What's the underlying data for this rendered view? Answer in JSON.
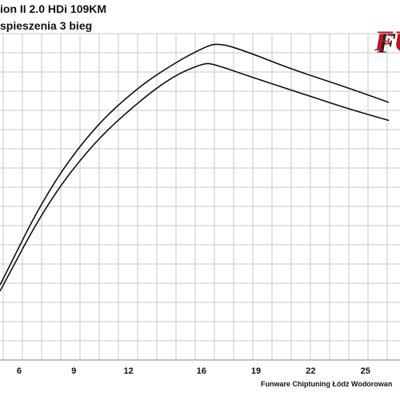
{
  "header": {
    "title_line1": "ion II 2.0 HDi 109KM",
    "title_line2": "spieszenia 3 bieg"
  },
  "logo": {
    "text": "FU"
  },
  "footer": {
    "text": "Funware Chiptuning Łódź Wodorowan"
  },
  "chart_data": {
    "type": "line",
    "title": "",
    "xlabel": "",
    "ylabel": "",
    "x_ticks": [
      "6",
      "9",
      "12",
      "16",
      "19",
      "22",
      "25"
    ],
    "grid": true,
    "series": [
      {
        "x": [
          4.95,
          7.5,
          10,
          12.5,
          14.5,
          16.0,
          16.9,
          18.5,
          21,
          24,
          26.3
        ],
        "y": [
          0.25,
          0.56,
          0.77,
          0.91,
          0.99,
          1.04,
          1.06,
          1.03,
          0.97,
          0.91,
          0.86
        ]
      },
      {
        "x": [
          4.95,
          7.5,
          10,
          12.5,
          14.5,
          16.1,
          16.6,
          18.5,
          21,
          24,
          26.3
        ],
        "y": [
          0.23,
          0.52,
          0.72,
          0.86,
          0.95,
          0.99,
          0.99,
          0.95,
          0.9,
          0.84,
          0.8
        ]
      }
    ],
    "line_color": "#111111",
    "grid_color": "#c8c8c8"
  }
}
